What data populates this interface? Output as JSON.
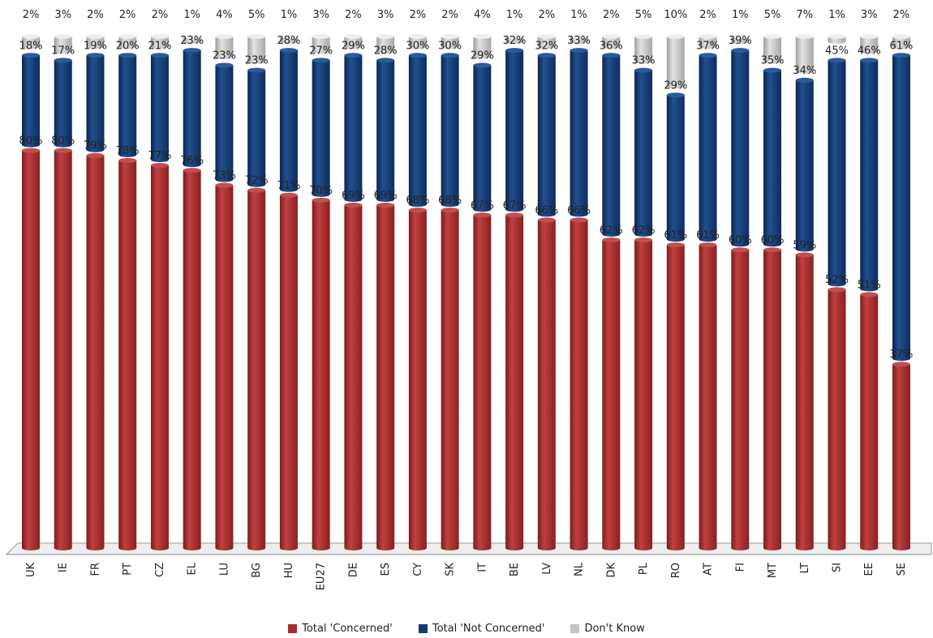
{
  "chart_data": {
    "type": "bar",
    "stacked": true,
    "categories": [
      "UK",
      "IE",
      "FR",
      "PT",
      "CZ",
      "EL",
      "LU",
      "BG",
      "HU",
      "EU27",
      "DE",
      "ES",
      "CY",
      "SK",
      "IT",
      "BE",
      "LV",
      "NL",
      "DK",
      "PL",
      "RO",
      "AT",
      "FI",
      "MT",
      "LT",
      "SI",
      "EE",
      "SE"
    ],
    "series": [
      {
        "name": "Total 'Concerned'",
        "color": "#a62b2b",
        "values": [
          80,
          80,
          79,
          78,
          77,
          76,
          73,
          72,
          71,
          70,
          69,
          69,
          68,
          68,
          67,
          67,
          66,
          66,
          62,
          62,
          61,
          61,
          60,
          60,
          59,
          52,
          51,
          37
        ]
      },
      {
        "name": "Total 'Not Concerned'",
        "color": "#143a72",
        "values": [
          18,
          17,
          19,
          20,
          21,
          23,
          23,
          23,
          28,
          27,
          29,
          28,
          30,
          30,
          29,
          32,
          32,
          33,
          36,
          33,
          29,
          37,
          39,
          35,
          34,
          45,
          46,
          61
        ]
      },
      {
        "name": "Don't Know",
        "color": "#c4c4c4",
        "values": [
          2,
          3,
          2,
          2,
          2,
          1,
          4,
          5,
          1,
          3,
          2,
          3,
          2,
          2,
          4,
          1,
          2,
          1,
          2,
          5,
          10,
          2,
          1,
          5,
          7,
          1,
          3,
          2
        ]
      }
    ],
    "value_suffix": "%",
    "ylim": [
      0,
      100
    ],
    "legend_position": "bottom",
    "grid": false
  }
}
